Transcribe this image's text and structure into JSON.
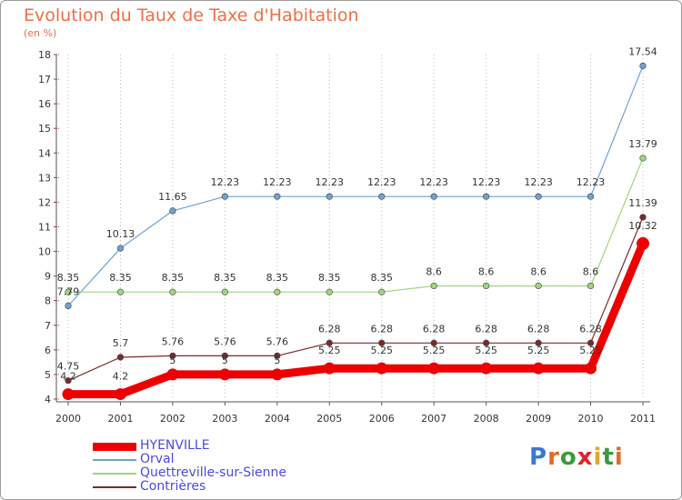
{
  "title": "Evolution du Taux de Taxe d'Habitation",
  "subtitle": "(en %)",
  "logo": {
    "text": "Proxiti",
    "letter_colors": [
      "#3a78d6",
      "#e36a2a",
      "#3a9a3a",
      "#e0222a",
      "#e3a825",
      "#3a9a3a",
      "#e36a2a"
    ]
  },
  "chart_data": {
    "type": "line",
    "x": [
      "2000",
      "2001",
      "2002",
      "2003",
      "2004",
      "2005",
      "2006",
      "2007",
      "2008",
      "2009",
      "2010",
      "2011"
    ],
    "ylim": [
      4,
      18
    ],
    "yticks": [
      4,
      5,
      6,
      7,
      8,
      9,
      10,
      11,
      12,
      13,
      14,
      15,
      16,
      17,
      18
    ],
    "grid": "vertical-dotted",
    "legend_position": "bottom-left",
    "series": [
      {
        "name": "HYENVILLE",
        "color": "#ee0000",
        "width": 9,
        "values": [
          4.2,
          4.2,
          5,
          5,
          5,
          5.25,
          5.25,
          5.25,
          5.25,
          5.25,
          5.25,
          10.32
        ],
        "labels": [
          "4.2",
          "4.2",
          "5",
          "5",
          "5",
          "5.25",
          "5.25",
          "5.25",
          "5.25",
          "5.25",
          "5.25",
          "10.32"
        ]
      },
      {
        "name": "Orval",
        "color": "#6fa2d0",
        "width": 1.2,
        "values": [
          7.79,
          10.13,
          11.65,
          12.23,
          12.23,
          12.23,
          12.23,
          12.23,
          12.23,
          12.23,
          12.23,
          17.54
        ],
        "labels": [
          "7.79",
          "10.13",
          "11.65",
          "12.23",
          "12.23",
          "12.23",
          "12.23",
          "12.23",
          "12.23",
          "12.23",
          "12.23",
          "17.54"
        ]
      },
      {
        "name": "Quettreville-sur-Sienne",
        "color": "#9ed67a",
        "width": 1.2,
        "values": [
          8.35,
          8.35,
          8.35,
          8.35,
          8.35,
          8.35,
          8.35,
          8.6,
          8.6,
          8.6,
          8.6,
          13.79
        ],
        "labels": [
          "8.35",
          "8.35",
          "8.35",
          "8.35",
          "8.35",
          "8.35",
          "8.35",
          "8.6",
          "8.6",
          "8.6",
          "8.6",
          "13.79"
        ]
      },
      {
        "name": "Contrières",
        "color": "#7a2a2a",
        "width": 1.2,
        "values": [
          4.75,
          5.7,
          5.76,
          5.76,
          5.76,
          6.28,
          6.28,
          6.28,
          6.28,
          6.28,
          6.28,
          11.39
        ],
        "labels": [
          "4.75",
          "5.7",
          "5.76",
          "5.76",
          "5.76",
          "6.28",
          "6.28",
          "6.28",
          "6.28",
          "6.28",
          "6.28",
          "11.39"
        ]
      }
    ]
  }
}
